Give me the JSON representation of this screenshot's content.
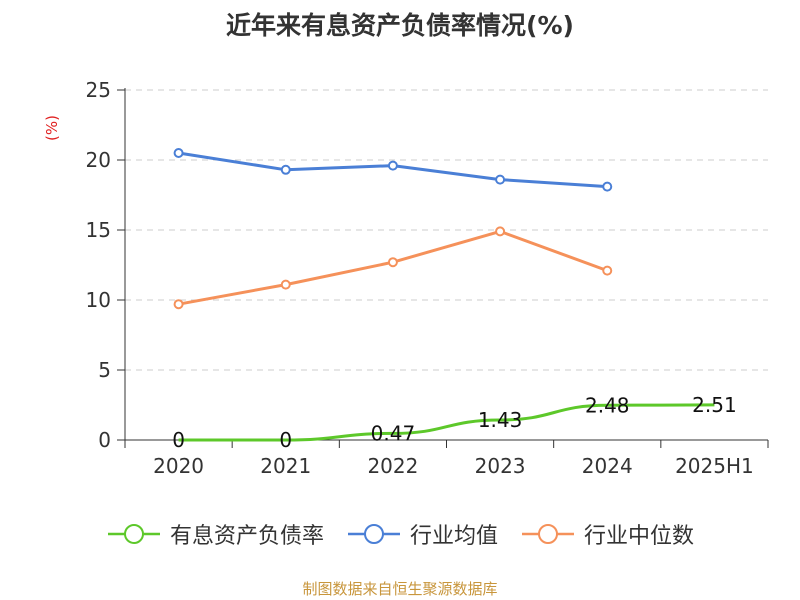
{
  "chart_data": {
    "type": "line",
    "title": "近年来有息资产负债率情况(%)",
    "ylabel": "(%)",
    "xlabel": "",
    "categories": [
      "2020",
      "2021",
      "2022",
      "2023",
      "2024",
      "2025H1"
    ],
    "ylim": [
      0,
      25
    ],
    "yticks": [
      0,
      5,
      10,
      15,
      20,
      25
    ],
    "grid": true,
    "legend_position": "bottom",
    "series": [
      {
        "name": "有息资产负债率",
        "color": "#5dc82a",
        "values": [
          0,
          0,
          0.47,
          1.43,
          2.48,
          2.51
        ],
        "labels": [
          "0",
          "0",
          "0.47",
          "1.43",
          "2.48",
          "2.51"
        ]
      },
      {
        "name": "行业均值",
        "color": "#4a7fd6",
        "values": [
          20.5,
          19.3,
          19.6,
          18.6,
          18.1,
          null
        ]
      },
      {
        "name": "行业中位数",
        "color": "#f5915a",
        "values": [
          9.7,
          11.1,
          12.7,
          14.9,
          12.1,
          null
        ]
      }
    ]
  },
  "footer": {
    "source": "制图数据来自恒生聚源数据库"
  }
}
